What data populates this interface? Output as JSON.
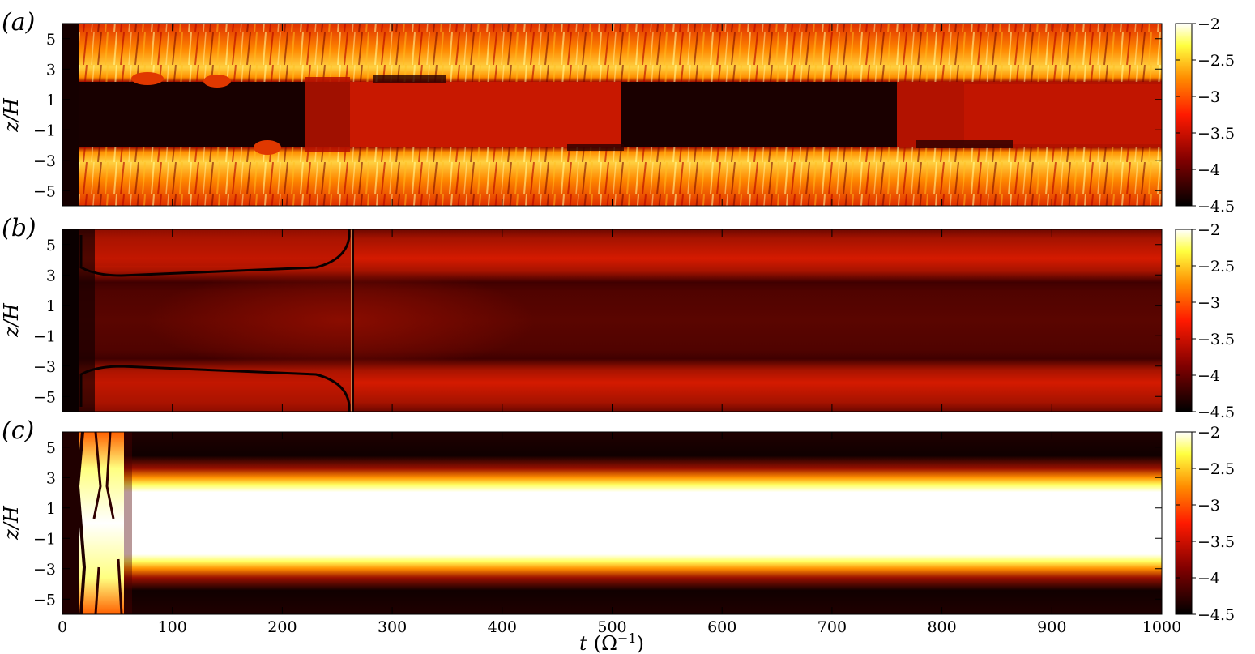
{
  "chart_data": [
    {
      "type": "heatmap",
      "panel_label": "(a)",
      "ylabel": "z/H",
      "yticks": [
        5,
        3,
        1,
        -1,
        -3,
        -5
      ],
      "xticks": [
        0,
        100,
        200,
        300,
        400,
        500,
        600,
        700,
        800,
        900,
        1000
      ],
      "xlim": [
        0,
        1000
      ],
      "ylim": [
        -6,
        6
      ],
      "colormap": "hot",
      "colorbar": {
        "range": [
          -4.5,
          -2
        ],
        "ticks": [
          "-2",
          "-2.5",
          "-3",
          "-3.5",
          "-4",
          "-4.5"
        ]
      },
      "regions": [
        {
          "t": [
            0,
            15
          ],
          "z": [
            -6,
            6
          ],
          "value": -4.5
        },
        {
          "t": [
            15,
            1000
          ],
          "z": [
            2.5,
            6
          ],
          "value": -2.6,
          "texture": "turbulent"
        },
        {
          "t": [
            15,
            1000
          ],
          "z": [
            -6,
            -2.5
          ],
          "value": -2.6,
          "texture": "turbulent"
        },
        {
          "t": [
            15,
            230
          ],
          "z": [
            -2.5,
            2.5
          ],
          "value": -4.4
        },
        {
          "t": [
            230,
            500
          ],
          "z": [
            -2.5,
            2.5
          ],
          "value": -3.6
        },
        {
          "t": [
            500,
            760
          ],
          "z": [
            -2.5,
            2.5
          ],
          "value": -4.4
        },
        {
          "t": [
            760,
            1000
          ],
          "z": [
            -2.5,
            2.5
          ],
          "value": -3.7
        }
      ]
    },
    {
      "type": "heatmap",
      "panel_label": "(b)",
      "ylabel": "z/H",
      "yticks": [
        5,
        3,
        1,
        -1,
        -3,
        -5
      ],
      "xticks": [
        0,
        100,
        200,
        300,
        400,
        500,
        600,
        700,
        800,
        900,
        1000
      ],
      "xlim": [
        0,
        1000
      ],
      "ylim": [
        -6,
        6
      ],
      "colormap": "hot",
      "colorbar": {
        "range": [
          -4.5,
          -2
        ],
        "ticks": [
          "-2",
          "-2.5",
          "-3",
          "-3.5",
          "-4",
          "-4.5"
        ]
      },
      "regions": [
        {
          "t": [
            0,
            15
          ],
          "z": [
            -6,
            6
          ],
          "value": -4.5
        },
        {
          "t": [
            15,
            265
          ],
          "z": [
            3,
            6
          ],
          "value": -3.7
        },
        {
          "t": [
            15,
            265
          ],
          "z": [
            -6,
            -3
          ],
          "value": -3.7
        },
        {
          "t": [
            265,
            1000
          ],
          "z": [
            3.2,
            5.5
          ],
          "value": -3.6
        },
        {
          "t": [
            265,
            1000
          ],
          "z": [
            -5.5,
            -3.2
          ],
          "value": -3.6
        },
        {
          "t": [
            15,
            1000
          ],
          "z": [
            -2.5,
            2.5
          ],
          "value": -4.2
        },
        {
          "t": [
            120,
            430
          ],
          "z": [
            -1.8,
            1.8
          ],
          "value": -4.0
        }
      ],
      "features": [
        {
          "kind": "front",
          "t": 265,
          "z": [
            -6,
            6
          ]
        }
      ]
    },
    {
      "type": "heatmap",
      "panel_label": "(c)",
      "ylabel": "z/H",
      "yticks": [
        5,
        3,
        1,
        -1,
        -3,
        -5
      ],
      "xticks": [
        0,
        100,
        200,
        300,
        400,
        500,
        600,
        700,
        800,
        900,
        1000
      ],
      "xlabel": "t (Ω⁻¹)",
      "xlim": [
        0,
        1000
      ],
      "ylim": [
        -6,
        6
      ],
      "colormap": "hot",
      "colorbar": {
        "range": [
          -4.5,
          -2
        ],
        "ticks": [
          "-2",
          "-2.5",
          "-3",
          "-3.5",
          "-4",
          "-4.5"
        ]
      },
      "regions": [
        {
          "t": [
            0,
            60
          ],
          "z": [
            -6,
            6
          ],
          "value": -3.0,
          "texture": "transient"
        },
        {
          "t": [
            60,
            1000
          ],
          "z": [
            -2.3,
            2.3
          ],
          "value": -2.0
        },
        {
          "t": [
            60,
            1000
          ],
          "z": [
            3.5,
            6
          ],
          "value": -4.4
        },
        {
          "t": [
            60,
            1000
          ],
          "z": [
            -6,
            -3.5
          ],
          "value": -4.4
        }
      ]
    }
  ],
  "labels": {
    "panel_a": "(a)",
    "panel_b": "(b)",
    "panel_c": "(c)",
    "ylabel": "z/H",
    "xlabel_main": "t",
    "xlabel_unit": "(Ω",
    "xlabel_exp": "−1",
    "xlabel_close": ")"
  }
}
